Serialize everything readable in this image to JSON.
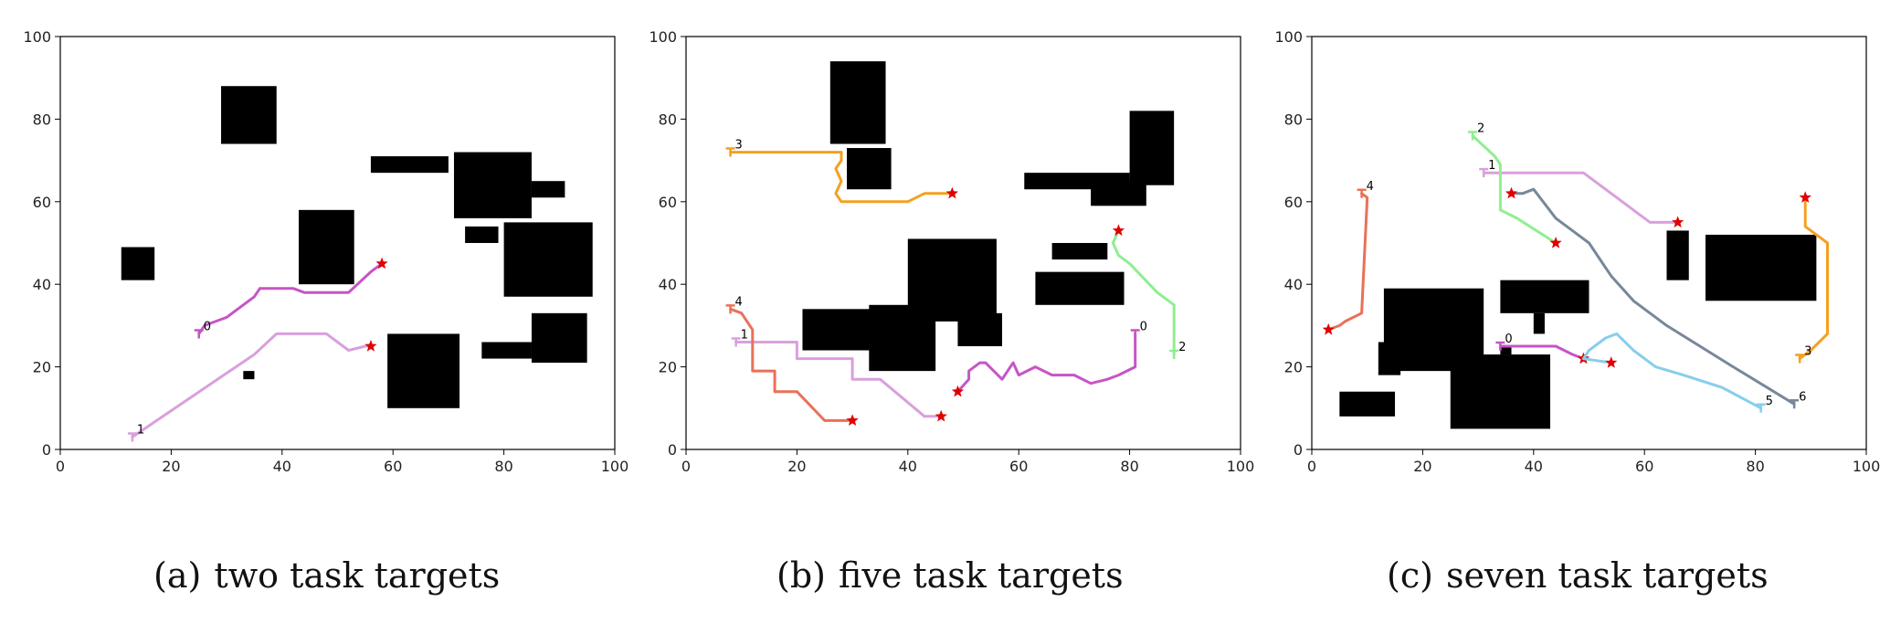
{
  "captions": {
    "a": {
      "label": "(a)",
      "text": "two task targets"
    },
    "b": {
      "label": "(b)",
      "text": "five task targets"
    },
    "c": {
      "label": "(c)",
      "text": "seven task targets"
    }
  },
  "chart_data": [
    {
      "type": "line",
      "title": "",
      "xlim": [
        0,
        100
      ],
      "ylim": [
        0,
        100
      ],
      "xticks": [
        0,
        20,
        40,
        60,
        80,
        100
      ],
      "yticks": [
        0,
        20,
        40,
        60,
        80,
        100
      ],
      "grid": false,
      "obstacles": [
        [
          29,
          74,
          39,
          88
        ],
        [
          56,
          67,
          70,
          71
        ],
        [
          71,
          56,
          85,
          72
        ],
        [
          85,
          61,
          91,
          65
        ],
        [
          11,
          41,
          17,
          49
        ],
        [
          43,
          40,
          53,
          58
        ],
        [
          73,
          50,
          79,
          54
        ],
        [
          80,
          37,
          96,
          55
        ],
        [
          59,
          10,
          72,
          28
        ],
        [
          76,
          22,
          85,
          26
        ],
        [
          85,
          21,
          95,
          33
        ],
        [
          33,
          17,
          35,
          19
        ]
      ],
      "series": [
        {
          "name": "0",
          "color": "#c655c6",
          "start": [
            25,
            28
          ],
          "goal": [
            58,
            45
          ],
          "points": [
            [
              25,
              28
            ],
            [
              26,
              30
            ],
            [
              30,
              32
            ],
            [
              35,
              37
            ],
            [
              36,
              39
            ],
            [
              42,
              39
            ],
            [
              44,
              38
            ],
            [
              50,
              38
            ],
            [
              52,
              38
            ],
            [
              56,
              43
            ],
            [
              58,
              45
            ]
          ]
        },
        {
          "name": "1",
          "color": "#d9a0dc",
          "start": [
            13,
            3
          ],
          "goal": [
            56,
            25
          ],
          "points": [
            [
              13,
              3
            ],
            [
              35,
              23
            ],
            [
              39,
              28
            ],
            [
              46,
              28
            ],
            [
              48,
              28
            ],
            [
              50,
              26
            ],
            [
              52,
              24
            ],
            [
              55,
              25
            ],
            [
              56,
              25
            ]
          ]
        }
      ]
    },
    {
      "type": "line",
      "title": "",
      "xlim": [
        0,
        100
      ],
      "ylim": [
        0,
        100
      ],
      "xticks": [
        0,
        20,
        40,
        60,
        80,
        100
      ],
      "yticks": [
        0,
        20,
        40,
        60,
        80,
        100
      ],
      "grid": false,
      "obstacles": [
        [
          26,
          74,
          36,
          94
        ],
        [
          29,
          63,
          37,
          73
        ],
        [
          61,
          63,
          80,
          67
        ],
        [
          73,
          59,
          83,
          65
        ],
        [
          80,
          64,
          88,
          82
        ],
        [
          66,
          46,
          76,
          50
        ],
        [
          63,
          35,
          79,
          43
        ],
        [
          40,
          31,
          56,
          51
        ],
        [
          21,
          24,
          43,
          34
        ],
        [
          33,
          19,
          45,
          35
        ],
        [
          49,
          25,
          57,
          33
        ]
      ],
      "series": [
        {
          "name": "0",
          "color": "#c655c6",
          "start": [
            81,
            28
          ],
          "goal": [
            49,
            14
          ],
          "points": [
            [
              81,
              28
            ],
            [
              81,
              20
            ],
            [
              78,
              18
            ],
            [
              76,
              17
            ],
            [
              73,
              16
            ],
            [
              70,
              18
            ],
            [
              66,
              18
            ],
            [
              63,
              20
            ],
            [
              60,
              18
            ],
            [
              59,
              21
            ],
            [
              57,
              17
            ],
            [
              54,
              21
            ],
            [
              53,
              21
            ],
            [
              51,
              19
            ],
            [
              51,
              17
            ],
            [
              49,
              14
            ]
          ]
        },
        {
          "name": "1",
          "color": "#d9a0dc",
          "start": [
            9,
            26
          ],
          "goal": [
            46,
            8
          ],
          "points": [
            [
              9,
              26
            ],
            [
              20,
              26
            ],
            [
              20,
              22
            ],
            [
              30,
              22
            ],
            [
              30,
              17
            ],
            [
              35,
              17
            ],
            [
              43,
              8
            ],
            [
              46,
              8
            ]
          ]
        },
        {
          "name": "2",
          "color": "#90ee90",
          "start": [
            88,
            23
          ],
          "goal": [
            78,
            53
          ],
          "points": [
            [
              88,
              23
            ],
            [
              88,
              35
            ],
            [
              85,
              38
            ],
            [
              80,
              45
            ],
            [
              78,
              47
            ],
            [
              77,
              50
            ],
            [
              78,
              53
            ]
          ]
        },
        {
          "name": "3",
          "color": "#f5a020",
          "start": [
            8,
            72
          ],
          "goal": [
            48,
            62
          ],
          "points": [
            [
              8,
              72
            ],
            [
              28,
              72
            ],
            [
              28,
              70
            ],
            [
              27,
              68
            ],
            [
              28,
              65
            ],
            [
              27,
              62
            ],
            [
              28,
              60
            ],
            [
              40,
              60
            ],
            [
              43,
              62
            ],
            [
              48,
              62
            ]
          ]
        },
        {
          "name": "4",
          "color": "#e8715a",
          "start": [
            8,
            34
          ],
          "goal": [
            30,
            7
          ],
          "points": [
            [
              8,
              34
            ],
            [
              10,
              33
            ],
            [
              12,
              29
            ],
            [
              12,
              19
            ],
            [
              16,
              19
            ],
            [
              16,
              14
            ],
            [
              20,
              14
            ],
            [
              25,
              7
            ],
            [
              30,
              7
            ]
          ]
        }
      ]
    },
    {
      "type": "line",
      "title": "",
      "xlim": [
        0,
        100
      ],
      "ylim": [
        0,
        100
      ],
      "xticks": [
        0,
        20,
        40,
        60,
        80,
        100
      ],
      "yticks": [
        0,
        20,
        40,
        60,
        80,
        100
      ],
      "grid": false,
      "obstacles": [
        [
          13,
          19,
          31,
          39
        ],
        [
          12,
          18,
          16,
          26
        ],
        [
          5,
          8,
          15,
          14
        ],
        [
          25,
          5,
          43,
          23
        ],
        [
          34,
          23,
          36,
          25
        ],
        [
          34,
          33,
          50,
          41
        ],
        [
          40,
          28,
          42,
          33
        ],
        [
          64,
          41,
          68,
          53
        ],
        [
          71,
          36,
          91,
          52
        ]
      ],
      "series": [
        {
          "name": "0",
          "color": "#c655c6",
          "start": [
            34,
            25
          ],
          "goal": [
            49,
            22
          ],
          "points": [
            [
              34,
              25
            ],
            [
              44,
              25
            ],
            [
              47,
              23
            ],
            [
              49,
              22
            ]
          ]
        },
        {
          "name": "1",
          "color": "#d9a0dc",
          "start": [
            31,
            67
          ],
          "goal": [
            66,
            55
          ],
          "points": [
            [
              31,
              67
            ],
            [
              49,
              67
            ],
            [
              59,
              57
            ],
            [
              61,
              55
            ],
            [
              66,
              55
            ]
          ]
        },
        {
          "name": "2",
          "color": "#90ee90",
          "start": [
            29,
            76
          ],
          "goal": [
            44,
            50
          ],
          "points": [
            [
              29,
              76
            ],
            [
              33,
              71
            ],
            [
              34,
              69
            ],
            [
              34,
              58
            ],
            [
              37,
              56
            ],
            [
              44,
              50
            ]
          ]
        },
        {
          "name": "3",
          "color": "#f5a020",
          "start": [
            88,
            22
          ],
          "goal": [
            89,
            61
          ],
          "points": [
            [
              88,
              22
            ],
            [
              90,
              24
            ],
            [
              93,
              28
            ],
            [
              93,
              50
            ],
            [
              89,
              54
            ],
            [
              89,
              61
            ]
          ]
        },
        {
          "name": "4",
          "color": "#e8715a",
          "start": [
            9,
            62
          ],
          "goal": [
            3,
            29
          ],
          "points": [
            [
              9,
              62
            ],
            [
              10,
              61
            ],
            [
              9,
              33
            ],
            [
              6,
              31
            ],
            [
              5,
              30
            ],
            [
              3,
              29
            ]
          ]
        },
        {
          "name": "5",
          "color": "#87ceeb",
          "start": [
            81,
            10
          ],
          "goal": [
            54,
            21
          ],
          "points": [
            [
              81,
              10
            ],
            [
              74,
              15
            ],
            [
              67,
              18
            ],
            [
              62,
              20
            ],
            [
              58,
              24
            ],
            [
              55,
              28
            ],
            [
              53,
              27
            ],
            [
              50,
              24
            ],
            [
              49,
              22
            ],
            [
              54,
              21
            ]
          ]
        },
        {
          "name": "6",
          "color": "#778899",
          "start": [
            87,
            11
          ],
          "goal": [
            36,
            62
          ],
          "points": [
            [
              87,
              11
            ],
            [
              76,
              20
            ],
            [
              64,
              30
            ],
            [
              58,
              36
            ],
            [
              54,
              42
            ],
            [
              52,
              46
            ],
            [
              50,
              50
            ],
            [
              44,
              56
            ],
            [
              40,
              63
            ],
            [
              38,
              62
            ],
            [
              36,
              62
            ]
          ]
        }
      ]
    }
  ]
}
